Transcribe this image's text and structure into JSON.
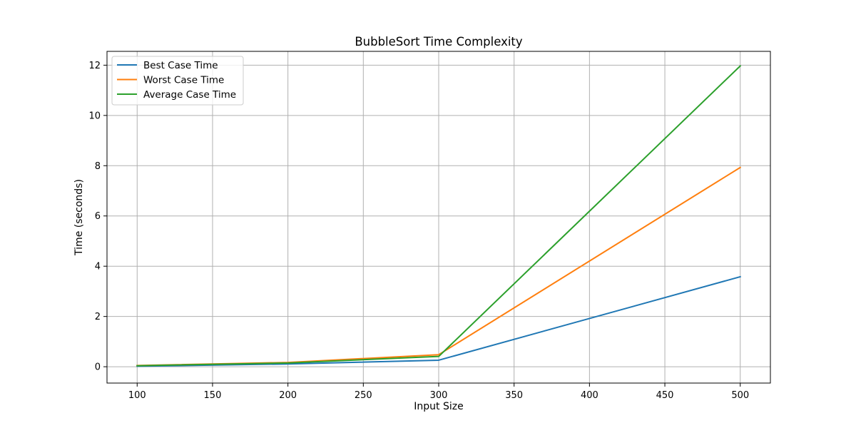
{
  "chart_data": {
    "type": "line",
    "title": "BubbleSort Time Complexity",
    "xlabel": "Input Size",
    "ylabel": "Time (seconds)",
    "x": [
      100,
      200,
      300,
      500
    ],
    "series": [
      {
        "name": "Best Case Time",
        "color": "#1f77b4",
        "values": [
          0.02,
          0.11,
          0.26,
          3.58
        ]
      },
      {
        "name": "Worst Case Time",
        "color": "#ff7f0e",
        "values": [
          0.05,
          0.17,
          0.48,
          7.93
        ]
      },
      {
        "name": "Average Case Time",
        "color": "#2ca02c",
        "values": [
          0.04,
          0.15,
          0.41,
          11.97
        ]
      }
    ],
    "xlim": [
      80,
      520
    ],
    "ylim": [
      -0.65,
      12.55
    ],
    "xticks": [
      100,
      150,
      200,
      250,
      300,
      350,
      400,
      450,
      500
    ],
    "yticks": [
      0,
      2,
      4,
      6,
      8,
      10,
      12
    ],
    "grid": true,
    "legend_position": "top-left"
  }
}
